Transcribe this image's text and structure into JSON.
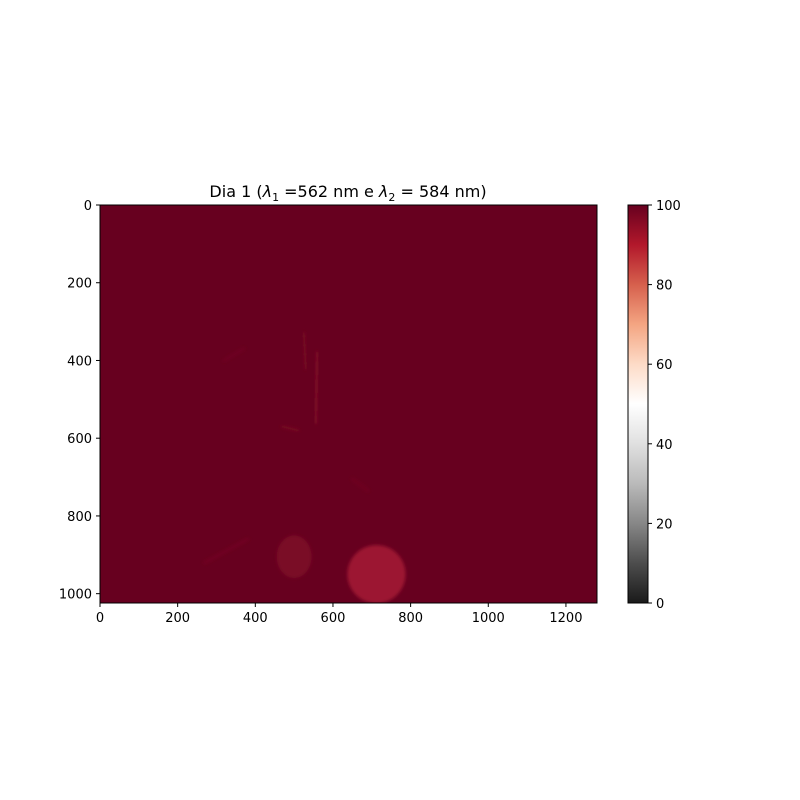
{
  "chart_data": {
    "type": "heatmap",
    "title": {
      "prefix": "Dia 1 (",
      "lambda": "λ",
      "sub1": "1",
      "mid": " =562 nm e ",
      "sub2": "2",
      "suffix": " = 584 nm)"
    },
    "x_ticks": [
      0,
      200,
      400,
      600,
      800,
      1000,
      1200
    ],
    "y_ticks": [
      0,
      200,
      400,
      600,
      800,
      1000
    ],
    "xlim": [
      0,
      1280
    ],
    "ylim": [
      1024,
      0
    ],
    "colorbar": {
      "colormap": "RdGy_r",
      "range": [
        0,
        100
      ],
      "ticks": [
        0,
        20,
        40,
        60,
        80,
        100
      ],
      "colors": [
        "#1a1a1a",
        "#4d4d4d",
        "#878787",
        "#bababa",
        "#e0e0e0",
        "#ffffff",
        "#fddbc7",
        "#f4a582",
        "#d6604d",
        "#b2182b",
        "#67001f"
      ]
    },
    "background_value": 100,
    "background_color": "#67001f",
    "regions": [
      {
        "type": "blob",
        "cx": 712,
        "cy": 950,
        "r": 75,
        "value": 93,
        "color": "#9c1630"
      },
      {
        "type": "blob",
        "cx": 500,
        "cy": 905,
        "rx": 45,
        "ry": 55,
        "value": 97,
        "color": "#7a0a25"
      },
      {
        "type": "streak",
        "x1": 560,
        "y1": 380,
        "x2": 555,
        "y2": 560,
        "value": 97,
        "color": "#7f0b27"
      },
      {
        "type": "streak",
        "x1": 525,
        "y1": 330,
        "x2": 530,
        "y2": 420,
        "value": 98,
        "color": "#760823"
      },
      {
        "type": "streak",
        "x1": 470,
        "y1": 570,
        "x2": 510,
        "y2": 580,
        "value": 98,
        "color": "#760823"
      },
      {
        "type": "streak",
        "x1": 650,
        "y1": 705,
        "x2": 690,
        "y2": 735,
        "value": 99,
        "color": "#700622"
      },
      {
        "type": "streak",
        "x1": 320,
        "y1": 400,
        "x2": 370,
        "y2": 370,
        "value": 99,
        "color": "#6f0421"
      },
      {
        "type": "streak",
        "x1": 270,
        "y1": 920,
        "x2": 380,
        "y2": 860,
        "value": 99,
        "color": "#720523"
      }
    ]
  }
}
